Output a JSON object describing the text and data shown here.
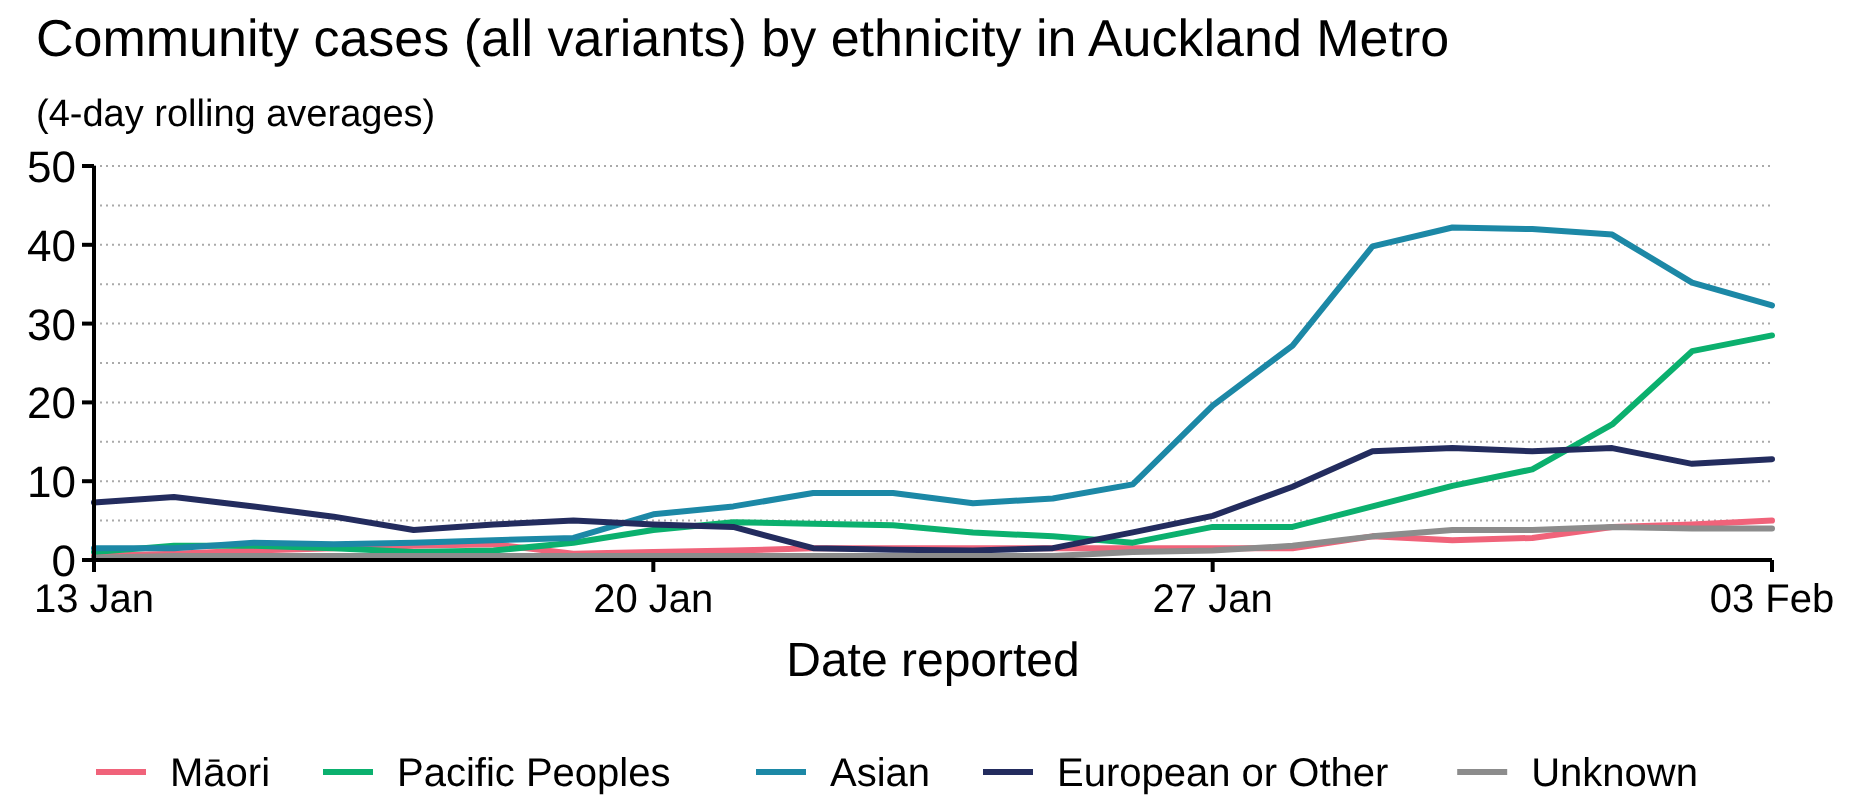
{
  "chart_data": {
    "type": "line",
    "title": "Community cases (all variants) by ethnicity in Auckland Metro",
    "subtitle": "(4-day rolling averages)",
    "xlabel": "Date reported",
    "x": [
      "--01-13",
      "--01-14",
      "--01-15",
      "--01-16",
      "--01-17",
      "--01-18",
      "--01-19",
      "--01-20",
      "--01-21",
      "--01-22",
      "--01-23",
      "--01-24",
      "--01-25",
      "--01-26",
      "--01-27",
      "--01-28",
      "--01-29",
      "--01-30",
      "--01-31",
      "--02-01",
      "--02-02",
      "--02-03"
    ],
    "series": [
      {
        "name": "Māori",
        "color": "#f0637a",
        "values": [
          0.5,
          0.8,
          1.2,
          1.5,
          1.8,
          2,
          0.8,
          1,
          1.2,
          1.5,
          1.5,
          1.5,
          1.5,
          1.5,
          1.5,
          1.5,
          3,
          2.5,
          2.8,
          4.2,
          4.5,
          5
        ]
      },
      {
        "name": "Pacific Peoples",
        "color": "#0bb06e",
        "values": [
          1,
          1.8,
          1.8,
          1.5,
          1,
          1.2,
          2.2,
          3.8,
          4.8,
          4.6,
          4.4,
          3.5,
          3,
          2.2,
          4.2,
          4.2,
          6.8,
          9.4,
          11.5,
          17.2,
          26.5,
          28.5
        ]
      },
      {
        "name": "Asian",
        "color": "#1c88a6",
        "values": [
          1.5,
          1.5,
          2.2,
          2,
          2.2,
          2.5,
          2.8,
          5.8,
          6.8,
          8.5,
          8.5,
          7.2,
          7.8,
          9.6,
          19.6,
          27.2,
          39.8,
          42.2,
          42,
          41.3,
          35.2,
          32.3
        ]
      },
      {
        "name": "European or Other",
        "color": "#232c5e",
        "values": [
          7.3,
          8,
          6.8,
          5.5,
          3.8,
          4.5,
          5,
          4.5,
          4.2,
          1.5,
          1.3,
          1.2,
          1.5,
          3.5,
          5.6,
          9.3,
          13.8,
          14.2,
          13.8,
          14.2,
          12.2,
          12.8
        ]
      },
      {
        "name": "Unknown",
        "color": "#8c8c8c",
        "values": [
          0.3,
          0.5,
          0.5,
          0.5,
          0.5,
          0.5,
          0.5,
          0.5,
          0.5,
          0.5,
          0.5,
          0.5,
          0.5,
          1,
          1.2,
          1.8,
          3,
          3.8,
          3.8,
          4.2,
          4,
          4
        ]
      }
    ],
    "xlim": [
      "--01-13",
      "--02-03"
    ],
    "xticks": [
      {
        "value": "--01-13",
        "label": "13 Jan"
      },
      {
        "value": "--01-20",
        "label": "20 Jan"
      },
      {
        "value": "--01-27",
        "label": "27 Jan"
      },
      {
        "value": "--02-03",
        "label": "03 Feb"
      }
    ],
    "ylim": [
      0,
      50
    ],
    "yticks": [
      0,
      {
        "value": 5,
        "label": null
      },
      10,
      {
        "value": 15,
        "label": null
      },
      20,
      {
        "value": 25,
        "label": null
      },
      30,
      {
        "value": 35,
        "label": null
      },
      40,
      {
        "value": 45,
        "label": null
      },
      50
    ],
    "grid": "y",
    "legend": "bottom",
    "marker": "none",
    "line_style": "solid"
  }
}
